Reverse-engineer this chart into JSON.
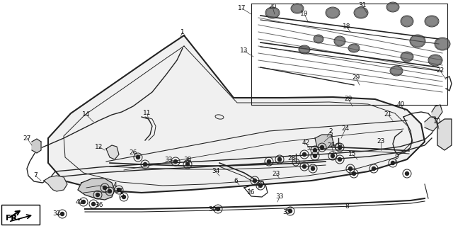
{
  "bg_color": "#ffffff",
  "line_color": "#222222",
  "fig_width": 6.4,
  "fig_height": 3.19,
  "dpi": 100
}
